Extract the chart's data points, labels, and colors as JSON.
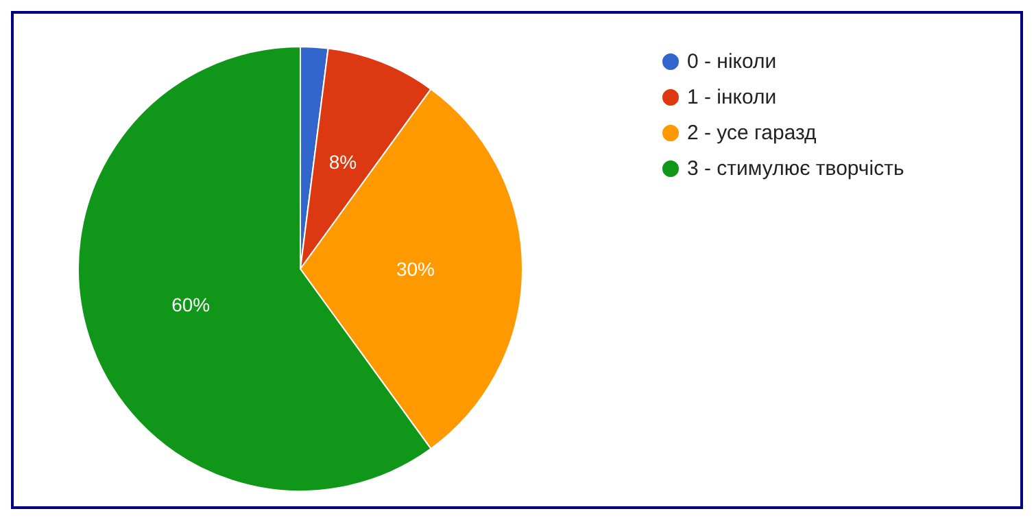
{
  "chart_data": {
    "type": "pie",
    "categories": [
      "0 - ніколи",
      "1 - інколи",
      "2 - усе гаразд",
      "3 - стимулює творчість"
    ],
    "values": [
      2,
      8,
      30,
      60
    ],
    "colors": [
      "#3366cc",
      "#dc3912",
      "#ff9900",
      "#109618"
    ],
    "value_labels": [
      null,
      "8%",
      "30%",
      "60%"
    ],
    "legend": "top right"
  }
}
